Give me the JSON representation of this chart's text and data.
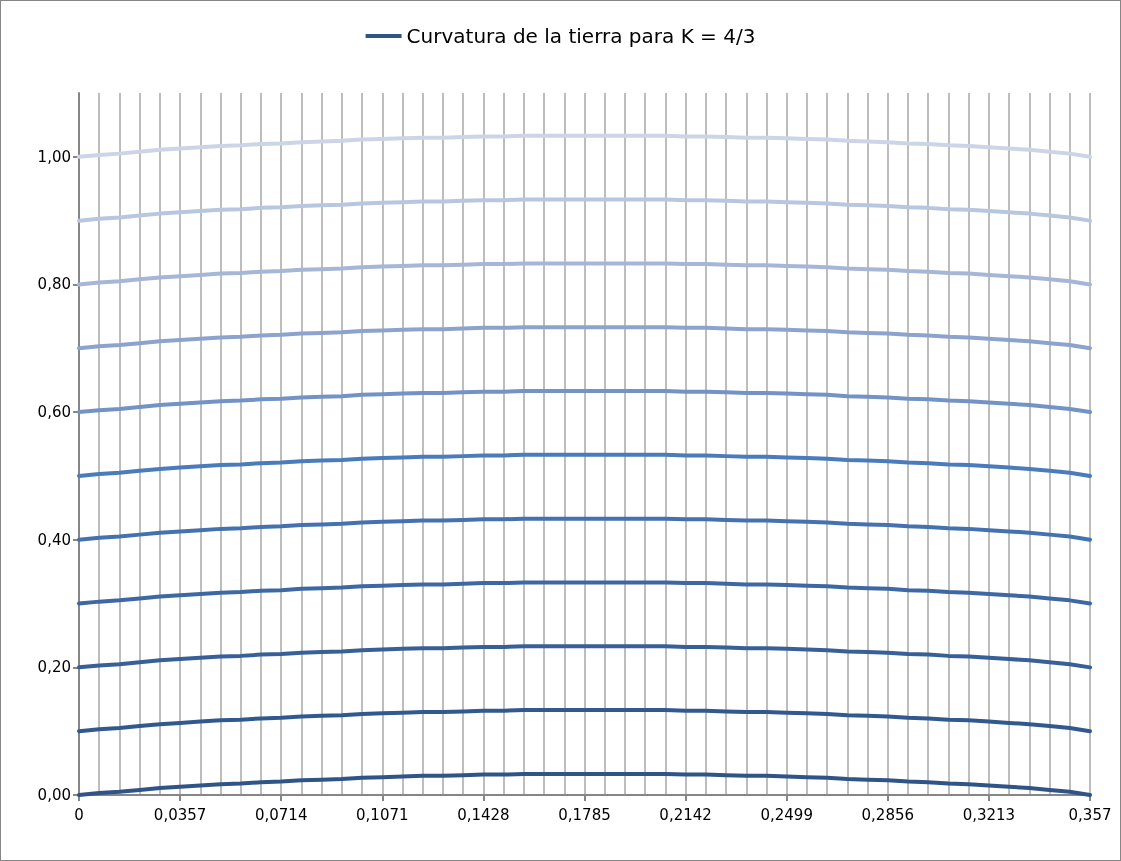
{
  "chart_data": {
    "type": "line",
    "legend": "top",
    "grid": "x",
    "marker": "none",
    "line_style": "solid",
    "categories": [
      "0",
      null,
      null,
      null,
      null,
      "0,0357",
      null,
      null,
      null,
      null,
      "0,0714",
      null,
      null,
      null,
      null,
      "0,1071",
      null,
      null,
      null,
      null,
      "0,1428",
      null,
      null,
      null,
      null,
      "0,1785",
      null,
      null,
      null,
      null,
      "0,2142",
      null,
      null,
      null,
      null,
      "0,2499",
      null,
      null,
      null,
      null,
      "0,2856",
      null,
      null,
      null,
      null,
      "0,3213",
      null,
      null,
      null,
      null,
      "0,357"
    ],
    "ylim": [
      0,
      1.1
    ],
    "yticks": [
      {
        "value": 0,
        "label": "0,00"
      },
      {
        "value": 0.2,
        "label": "0,20"
      },
      {
        "value": 0.4,
        "label": "0,40"
      },
      {
        "value": 0.6,
        "label": "0,60"
      },
      {
        "value": 0.8,
        "label": "0,80"
      },
      {
        "value": 1.0,
        "label": "1,00"
      }
    ],
    "series": [
      {
        "name": "Curvatura de la tierra para K = 4/3",
        "color": "#2f5487",
        "values": [
          0,
          0.003,
          0.005,
          0.008,
          0.011,
          0.013,
          0.015,
          0.017,
          0.018,
          0.02,
          0.021,
          0.023,
          0.024,
          0.025,
          0.027,
          0.028,
          0.029,
          0.03,
          0.03,
          0.031,
          0.032,
          0.032,
          0.033,
          0.033,
          0.033,
          0.033,
          0.033,
          0.033,
          0.033,
          0.033,
          0.032,
          0.032,
          0.031,
          0.03,
          0.03,
          0.029,
          0.028,
          0.027,
          0.025,
          0.024,
          0.023,
          0.021,
          0.02,
          0.018,
          0.017,
          0.015,
          0.013,
          0.011,
          0.008,
          0.005,
          0
        ]
      },
      {
        "color": "#32598f",
        "values": [
          0.1,
          0.103,
          0.105,
          0.108,
          0.111,
          0.113,
          0.115,
          0.117,
          0.118,
          0.12,
          0.121,
          0.123,
          0.124,
          0.125,
          0.127,
          0.128,
          0.129,
          0.13,
          0.13,
          0.131,
          0.132,
          0.132,
          0.133,
          0.133,
          0.133,
          0.133,
          0.133,
          0.133,
          0.133,
          0.133,
          0.132,
          0.132,
          0.131,
          0.13,
          0.13,
          0.129,
          0.128,
          0.127,
          0.125,
          0.124,
          0.123,
          0.121,
          0.12,
          0.118,
          0.117,
          0.115,
          0.113,
          0.111,
          0.108,
          0.105,
          0.1
        ]
      },
      {
        "color": "#375f98",
        "values": [
          0.2,
          0.203,
          0.205,
          0.208,
          0.211,
          0.213,
          0.215,
          0.217,
          0.218,
          0.22,
          0.221,
          0.223,
          0.224,
          0.225,
          0.227,
          0.228,
          0.229,
          0.23,
          0.23,
          0.231,
          0.232,
          0.232,
          0.233,
          0.233,
          0.233,
          0.233,
          0.233,
          0.233,
          0.233,
          0.233,
          0.232,
          0.232,
          0.231,
          0.23,
          0.23,
          0.229,
          0.228,
          0.227,
          0.225,
          0.224,
          0.223,
          0.221,
          0.22,
          0.218,
          0.217,
          0.215,
          0.213,
          0.211,
          0.208,
          0.205,
          0.2
        ]
      },
      {
        "color": "#3d68a4",
        "values": [
          0.3,
          0.303,
          0.305,
          0.308,
          0.311,
          0.313,
          0.315,
          0.317,
          0.318,
          0.32,
          0.321,
          0.323,
          0.324,
          0.325,
          0.327,
          0.328,
          0.329,
          0.33,
          0.33,
          0.331,
          0.332,
          0.332,
          0.333,
          0.333,
          0.333,
          0.333,
          0.333,
          0.333,
          0.333,
          0.333,
          0.332,
          0.332,
          0.331,
          0.33,
          0.33,
          0.329,
          0.328,
          0.327,
          0.325,
          0.324,
          0.323,
          0.321,
          0.32,
          0.318,
          0.317,
          0.315,
          0.313,
          0.311,
          0.308,
          0.305,
          0.3
        ]
      },
      {
        "color": "#4472b0",
        "values": [
          0.4,
          0.403,
          0.405,
          0.408,
          0.411,
          0.413,
          0.415,
          0.417,
          0.418,
          0.42,
          0.421,
          0.423,
          0.424,
          0.425,
          0.427,
          0.428,
          0.429,
          0.43,
          0.43,
          0.431,
          0.432,
          0.432,
          0.433,
          0.433,
          0.433,
          0.433,
          0.433,
          0.433,
          0.433,
          0.433,
          0.432,
          0.432,
          0.431,
          0.43,
          0.43,
          0.429,
          0.428,
          0.427,
          0.425,
          0.424,
          0.423,
          0.421,
          0.42,
          0.418,
          0.417,
          0.415,
          0.413,
          0.411,
          0.408,
          0.405,
          0.4
        ]
      },
      {
        "color": "#4a7bbd",
        "values": [
          0.5,
          0.503,
          0.505,
          0.508,
          0.511,
          0.513,
          0.515,
          0.517,
          0.518,
          0.52,
          0.521,
          0.523,
          0.524,
          0.525,
          0.527,
          0.528,
          0.529,
          0.53,
          0.53,
          0.531,
          0.532,
          0.532,
          0.533,
          0.533,
          0.533,
          0.533,
          0.533,
          0.533,
          0.533,
          0.533,
          0.532,
          0.532,
          0.531,
          0.53,
          0.53,
          0.529,
          0.528,
          0.527,
          0.525,
          0.524,
          0.523,
          0.521,
          0.52,
          0.518,
          0.517,
          0.515,
          0.513,
          0.511,
          0.508,
          0.505,
          0.5
        ]
      },
      {
        "color": "#7393c6",
        "values": [
          0.6,
          0.603,
          0.605,
          0.608,
          0.611,
          0.613,
          0.615,
          0.617,
          0.618,
          0.62,
          0.621,
          0.623,
          0.624,
          0.625,
          0.627,
          0.628,
          0.629,
          0.63,
          0.63,
          0.631,
          0.632,
          0.632,
          0.633,
          0.633,
          0.633,
          0.633,
          0.633,
          0.633,
          0.633,
          0.633,
          0.632,
          0.632,
          0.631,
          0.63,
          0.63,
          0.629,
          0.628,
          0.627,
          0.625,
          0.624,
          0.623,
          0.621,
          0.62,
          0.618,
          0.617,
          0.615,
          0.613,
          0.611,
          0.608,
          0.605,
          0.6
        ]
      },
      {
        "color": "#8ca3cd",
        "values": [
          0.7,
          0.703,
          0.705,
          0.708,
          0.711,
          0.713,
          0.715,
          0.717,
          0.718,
          0.72,
          0.721,
          0.723,
          0.724,
          0.725,
          0.727,
          0.728,
          0.729,
          0.73,
          0.73,
          0.731,
          0.732,
          0.732,
          0.733,
          0.733,
          0.733,
          0.733,
          0.733,
          0.733,
          0.733,
          0.733,
          0.732,
          0.732,
          0.731,
          0.73,
          0.73,
          0.729,
          0.728,
          0.727,
          0.725,
          0.724,
          0.723,
          0.721,
          0.72,
          0.718,
          0.717,
          0.715,
          0.713,
          0.711,
          0.708,
          0.705,
          0.7
        ]
      },
      {
        "color": "#a5b6d7",
        "values": [
          0.8,
          0.803,
          0.805,
          0.808,
          0.811,
          0.813,
          0.815,
          0.817,
          0.818,
          0.82,
          0.821,
          0.823,
          0.824,
          0.825,
          0.827,
          0.828,
          0.829,
          0.83,
          0.83,
          0.831,
          0.832,
          0.832,
          0.833,
          0.833,
          0.833,
          0.833,
          0.833,
          0.833,
          0.833,
          0.833,
          0.832,
          0.832,
          0.831,
          0.83,
          0.83,
          0.829,
          0.828,
          0.827,
          0.825,
          0.824,
          0.823,
          0.821,
          0.82,
          0.818,
          0.817,
          0.815,
          0.813,
          0.811,
          0.808,
          0.805,
          0.8
        ]
      },
      {
        "color": "#b8c6df",
        "values": [
          0.9,
          0.903,
          0.905,
          0.908,
          0.911,
          0.913,
          0.915,
          0.917,
          0.918,
          0.92,
          0.921,
          0.923,
          0.924,
          0.925,
          0.927,
          0.928,
          0.929,
          0.93,
          0.93,
          0.931,
          0.932,
          0.932,
          0.933,
          0.933,
          0.933,
          0.933,
          0.933,
          0.933,
          0.933,
          0.933,
          0.932,
          0.932,
          0.931,
          0.93,
          0.93,
          0.929,
          0.928,
          0.927,
          0.925,
          0.924,
          0.923,
          0.921,
          0.92,
          0.918,
          0.917,
          0.915,
          0.913,
          0.911,
          0.908,
          0.905,
          0.9
        ]
      },
      {
        "color": "#cbd5e7",
        "values": [
          1.0,
          1.003,
          1.005,
          1.008,
          1.011,
          1.013,
          1.015,
          1.017,
          1.018,
          1.02,
          1.021,
          1.023,
          1.024,
          1.025,
          1.027,
          1.028,
          1.029,
          1.03,
          1.03,
          1.031,
          1.032,
          1.032,
          1.033,
          1.033,
          1.033,
          1.033,
          1.033,
          1.033,
          1.033,
          1.033,
          1.032,
          1.032,
          1.031,
          1.03,
          1.03,
          1.029,
          1.028,
          1.027,
          1.025,
          1.024,
          1.023,
          1.021,
          1.02,
          1.018,
          1.017,
          1.015,
          1.013,
          1.011,
          1.008,
          1.005,
          1.0
        ]
      }
    ]
  }
}
